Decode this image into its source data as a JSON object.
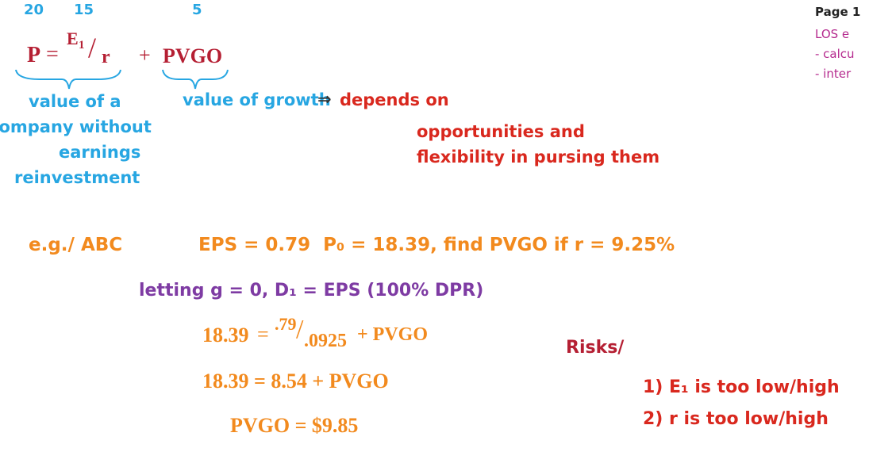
{
  "top_numbers": [
    "20",
    "15",
    "5"
  ],
  "formula": {
    "lhs": "P",
    "eq": "=",
    "numerator": "E",
    "numerator_sub": "1",
    "slash": "/",
    "denominator": "r",
    "plus": "+",
    "pvgo": "PVGO"
  },
  "left_note": [
    "value of a",
    "company without",
    "earnings",
    "reinvestment"
  ],
  "growth_note": {
    "label": "value of growth",
    "arrow": "⇒",
    "text": [
      "depends on",
      "opportunities and",
      "flexibility in pursing them"
    ]
  },
  "sidebar": {
    "title": "Page 1",
    "los": "LOS e",
    "items": [
      "- calcu",
      "- inter"
    ]
  },
  "example": {
    "label": "e.g./ ABC",
    "given": "EPS = 0.79  P₀ = 18.39, find PVGO if r = 9.25%",
    "assumption": "letting g = 0, D₁ = EPS (100% DPR)",
    "step1": {
      "lhs": "18.39",
      "eq": "=",
      "num": ".79",
      "slash": "/",
      "den": ".0925",
      "rest": "+ PVGO"
    },
    "step2": "18.39 = 8.54 + PVGO",
    "step3": "PVGO = $9.85"
  },
  "risks": {
    "title": "Risks/",
    "items": [
      "1) E₁ is too low/high",
      "2) r is too low/high"
    ]
  }
}
